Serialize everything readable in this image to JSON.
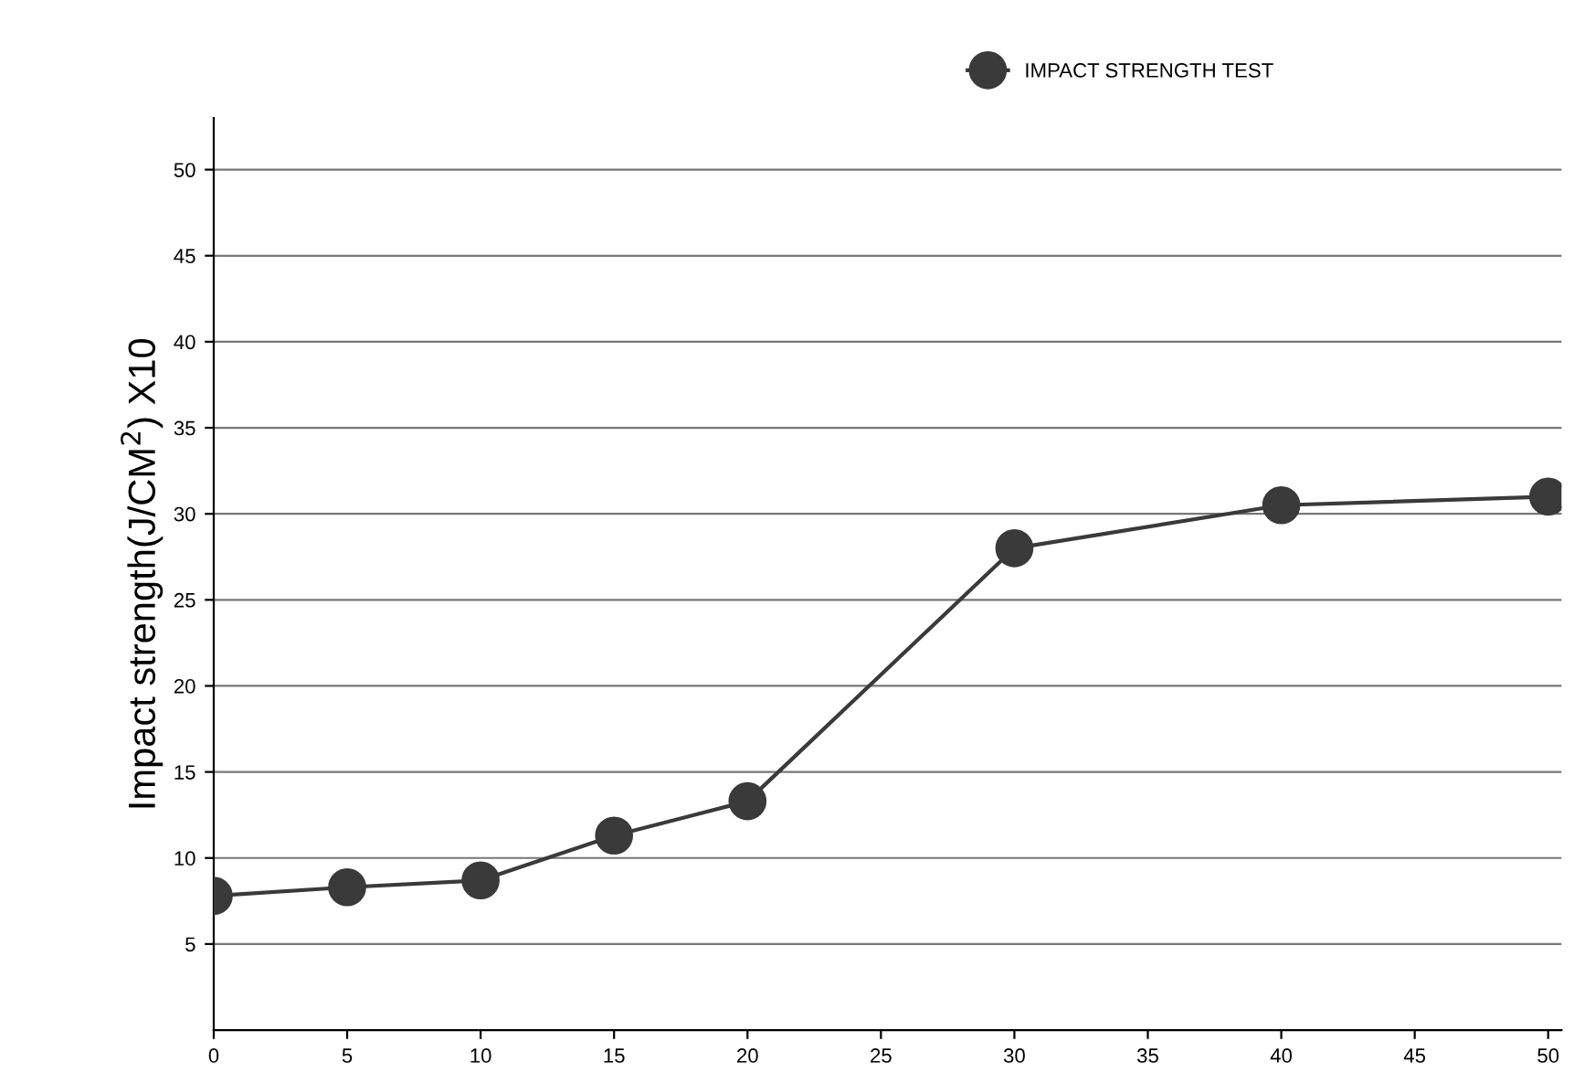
{
  "chart_data": {
    "type": "line",
    "ylabel": "Impact strength(J/CM$^{2}$) X10",
    "x": [
      0,
      5,
      10,
      15,
      20,
      30,
      40,
      50
    ],
    "series": [
      {
        "name": "IMPACT STRENGTH TEST",
        "color": "#3a3a3a",
        "values": [
          7.8,
          8.3,
          8.7,
          11.3,
          13.3,
          28,
          30.5,
          31
        ]
      }
    ],
    "xlim": [
      0,
      50.5
    ],
    "xticks": [
      0,
      5,
      10,
      15,
      20,
      25,
      30,
      35,
      40,
      45,
      50
    ],
    "ylim": [
      0,
      53
    ],
    "yticks": [
      5,
      10,
      15,
      20,
      25,
      30,
      35,
      40,
      45,
      50
    ],
    "grid": "y",
    "legend": "top right",
    "marker": "circle",
    "line_style": "solid"
  }
}
